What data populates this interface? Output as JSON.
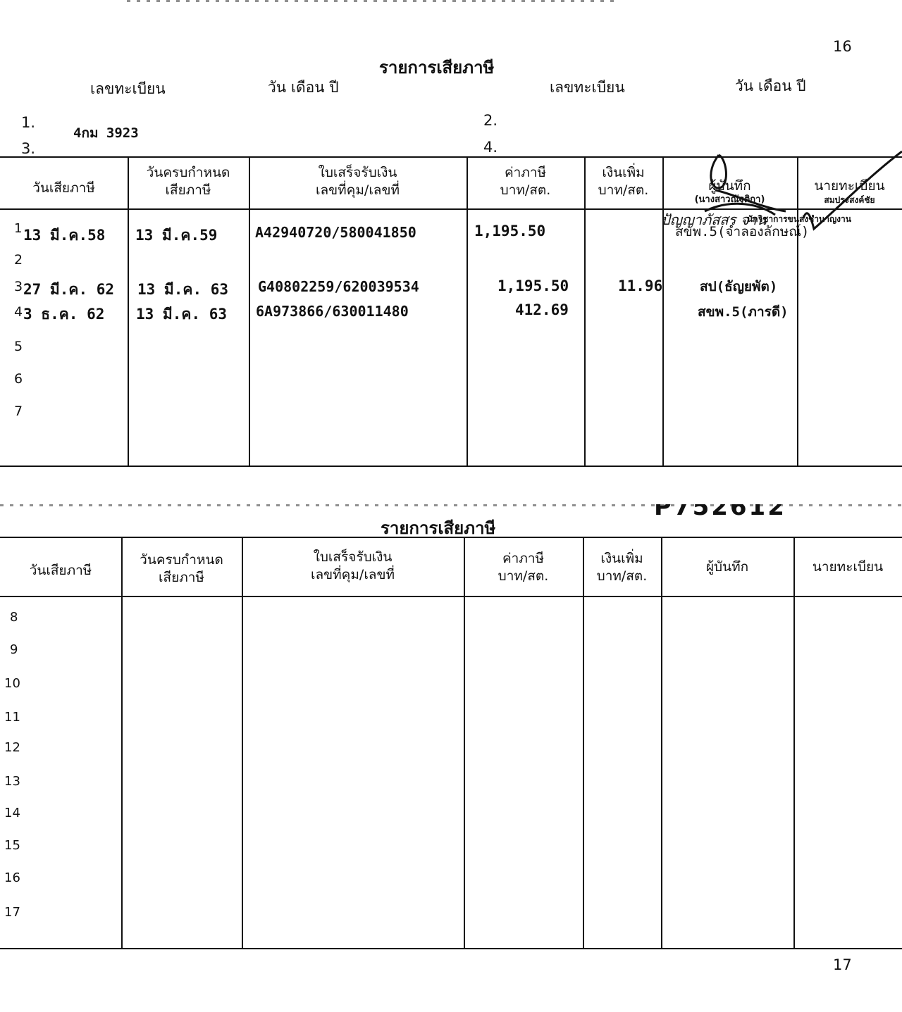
{
  "page_number_top": "16",
  "page_number_bottom": "17",
  "section1": {
    "title": "รายการเสียภาษี",
    "labels": {
      "reg_no_1": "เลขทะเบียน",
      "date_1": "วัน เดือน ปี",
      "reg_no_2": "เลขทะเบียน",
      "date_2": "วัน เดือน ปี"
    },
    "plates": [
      {
        "num": "1.",
        "value": "4กม 3923"
      },
      {
        "num": "2.",
        "value": ""
      },
      {
        "num": "3.",
        "value": ""
      },
      {
        "num": "4.",
        "value": ""
      }
    ],
    "headers": {
      "pay_date": "วันเสียภาษี",
      "due_date_1": "วันครบกำหนด",
      "due_date_2": "เสียภาษี",
      "receipt_1": "ใบเสร็จรับเงิน",
      "receipt_2": "เลขที่คุม/เลขที่",
      "tax_1": "ค่าภาษี",
      "tax_2": "บาท/สต.",
      "extra_1": "เงินเพิ่ม",
      "extra_2": "บาท/สต.",
      "recorder_1": "ผู้บันทึก",
      "recorder_2": "(นางสาวณัฐติกา)",
      "registrar": "นายทะเบียน",
      "registrar_2": "สมประสงค์ชัย"
    },
    "stamp_lines": [
      "ปัญญาภัสสร จาน",
      "นักวิชาการขนส่งชำนาญงาน"
    ],
    "rows": [
      {
        "no": "1",
        "pay_date": "13 มี.ค.58",
        "due_date": "13 มี.ค.59",
        "receipt": "A42940720/580041850",
        "tax": "1,195.50",
        "extra": "",
        "recorder": "สขพ.5(จำลองลักษณ์)"
      },
      {
        "no": "2",
        "pay_date": "",
        "due_date": "",
        "receipt": "",
        "tax": "",
        "extra": "",
        "recorder": ""
      },
      {
        "no": "3",
        "pay_date": "27 มี.ค. 62",
        "due_date": "13 มี.ค. 63",
        "receipt": "G40802259/620039534",
        "tax": "1,195.50",
        "extra": "11.96",
        "recorder": "สป(ธัญยพัต)"
      },
      {
        "no": "4",
        "pay_date": "3 ธ.ค. 62",
        "due_date": "13 มี.ค. 63",
        "receipt": "6A973866/630011480",
        "tax": "412.69",
        "extra": "",
        "recorder": "สขพ.5(ภารดี)"
      },
      {
        "no": "5"
      },
      {
        "no": "6"
      },
      {
        "no": "7"
      }
    ]
  },
  "section2": {
    "stamp_text": "P752612",
    "title": "รายการเสียภาษี",
    "headers": {
      "pay_date": "วันเสียภาษี",
      "due_date_1": "วันครบกำหนด",
      "due_date_2": "เสียภาษี",
      "receipt_1": "ใบเสร็จรับเงิน",
      "receipt_2": "เลขที่คุม/เลขที่",
      "tax_1": "ค่าภาษี",
      "tax_2": "บาท/สต.",
      "extra_1": "เงินเพิ่ม",
      "extra_2": "บาท/สต.",
      "recorder": "ผู้บันทึก",
      "registrar": "นายทะเบียน"
    },
    "row_numbers": [
      "8",
      "9",
      "10",
      "11",
      "12",
      "13",
      "14",
      "15",
      "16",
      "17"
    ]
  }
}
